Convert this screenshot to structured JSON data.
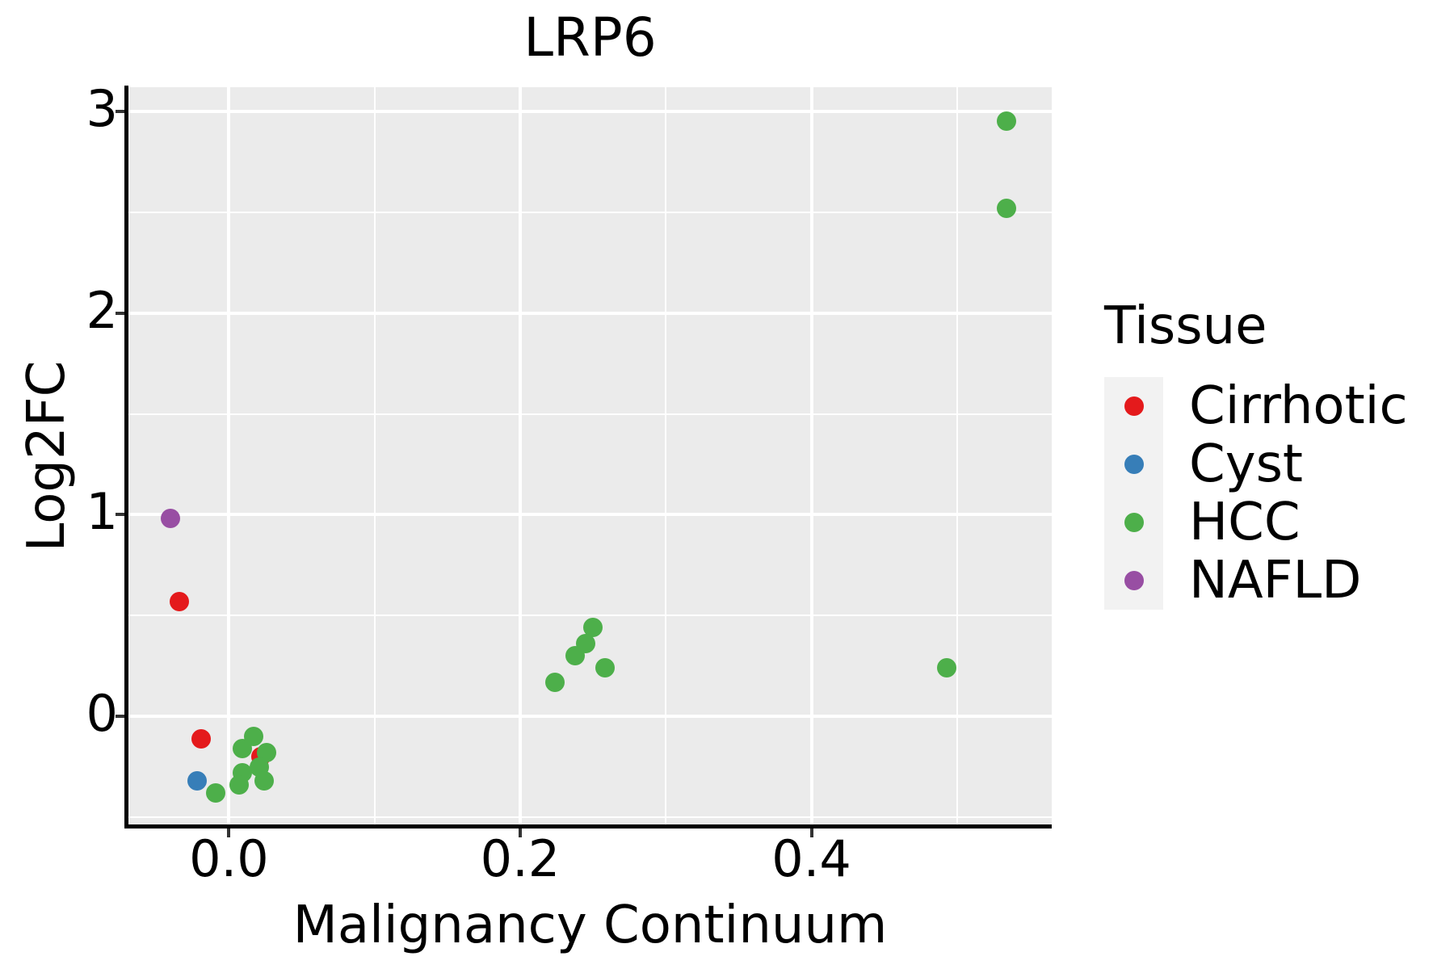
{
  "chart_data": {
    "type": "scatter",
    "title": "LRP6",
    "xlabel": "Malignancy Continuum",
    "ylabel": "Log2FC",
    "xlim": [
      -0.069,
      0.565
    ],
    "ylim": [
      -0.54,
      3.12
    ],
    "x_major_ticks": [
      0.0,
      0.2,
      0.4
    ],
    "x_tick_labels": [
      "0.0",
      "0.2",
      "0.4"
    ],
    "x_minor_ticks": [
      0.1,
      0.3,
      0.5
    ],
    "y_major_ticks": [
      0,
      1,
      2,
      3
    ],
    "y_tick_labels": [
      "0",
      "1",
      "2",
      "3"
    ],
    "y_minor_ticks": [
      -0.5,
      0.5,
      1.5,
      2.5
    ],
    "grid": "major+minor",
    "legend": {
      "title": "Tissue",
      "position": "right",
      "entries": [
        {
          "label": "Cirrhotic",
          "color": "#E41A1C"
        },
        {
          "label": "Cyst",
          "color": "#377EB8"
        },
        {
          "label": "HCC",
          "color": "#4DAF4A"
        },
        {
          "label": "NAFLD",
          "color": "#984EA3"
        }
      ]
    },
    "series": [
      {
        "name": "Cirrhotic",
        "color": "#E41A1C",
        "points": [
          [
            -0.034,
            0.57
          ],
          [
            -0.019,
            -0.11
          ],
          [
            0.022,
            -0.2
          ]
        ]
      },
      {
        "name": "Cyst",
        "color": "#377EB8",
        "points": [
          [
            -0.022,
            -0.32
          ]
        ]
      },
      {
        "name": "HCC",
        "color": "#4DAF4A",
        "points": [
          [
            0.534,
            2.95
          ],
          [
            0.534,
            2.52
          ],
          [
            0.493,
            0.24
          ],
          [
            0.25,
            0.44
          ],
          [
            0.245,
            0.36
          ],
          [
            0.238,
            0.3
          ],
          [
            0.258,
            0.24
          ],
          [
            0.224,
            0.17
          ],
          [
            0.017,
            -0.1
          ],
          [
            0.009,
            -0.16
          ],
          [
            0.026,
            -0.18
          ],
          [
            0.021,
            -0.25
          ],
          [
            0.009,
            -0.28
          ],
          [
            0.024,
            -0.32
          ],
          [
            0.007,
            -0.34
          ],
          [
            -0.009,
            -0.38
          ]
        ]
      },
      {
        "name": "NAFLD",
        "color": "#984EA3",
        "points": [
          [
            -0.04,
            0.98
          ]
        ]
      }
    ],
    "colors": {
      "panel_background": "#EBEBEB",
      "grid": "#FFFFFF",
      "legend_key_background": "#F2F2F2",
      "axis_line": "#000000",
      "tick_mark": "#333333",
      "text": "#000000"
    }
  }
}
